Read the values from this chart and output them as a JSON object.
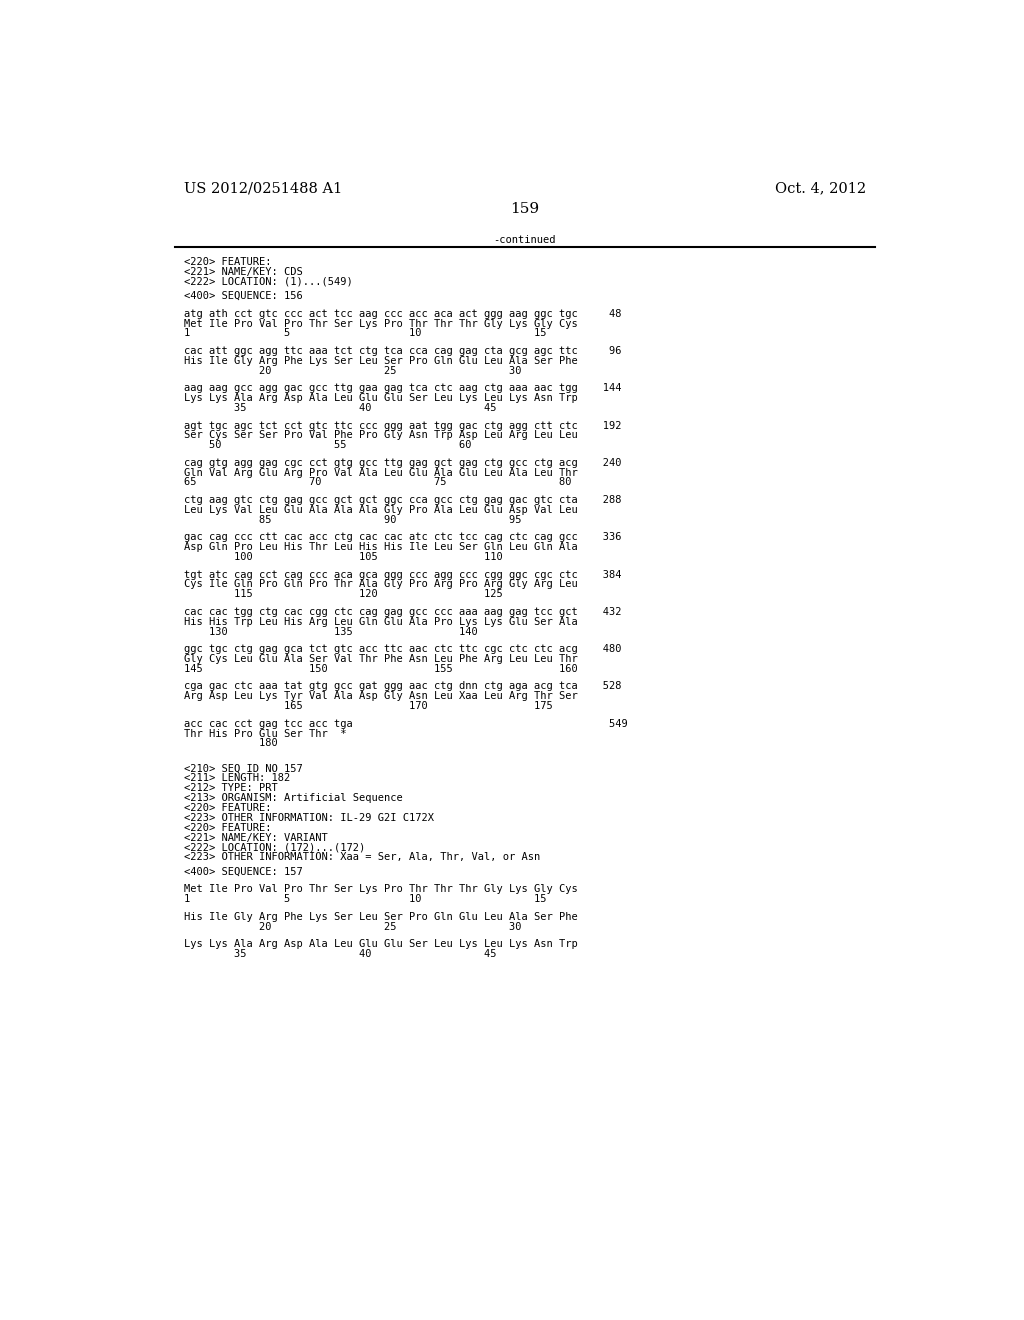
{
  "header_left": "US 2012/0251488 A1",
  "header_right": "Oct. 4, 2012",
  "page_number": "159",
  "continued_text": "-continued",
  "background_color": "#ffffff",
  "text_color": "#000000",
  "font_size_header": 10.5,
  "font_size_body": 8.5,
  "font_size_page": 11,
  "body_fontsize": 7.5,
  "lines": [
    {
      "text": "<220> FEATURE:",
      "type": "mono"
    },
    {
      "text": "<221> NAME/KEY: CDS",
      "type": "mono"
    },
    {
      "text": "<222> LOCATION: (1)...(549)",
      "type": "mono"
    },
    {
      "text": "",
      "type": "blank_small"
    },
    {
      "text": "<400> SEQUENCE: 156",
      "type": "mono"
    },
    {
      "text": "",
      "type": "blank_large"
    },
    {
      "text": "atg ath cct gtc ccc act tcc aag ccc acc aca act ggg aag ggc tgc     48",
      "type": "mono"
    },
    {
      "text": "Met Ile Pro Val Pro Thr Ser Lys Pro Thr Thr Thr Gly Lys Gly Cys",
      "type": "mono"
    },
    {
      "text": "1               5                   10                  15",
      "type": "mono"
    },
    {
      "text": "",
      "type": "blank_large"
    },
    {
      "text": "cac att ggc agg ttc aaa tct ctg tca cca cag gag cta gcg agc ttc     96",
      "type": "mono"
    },
    {
      "text": "His Ile Gly Arg Phe Lys Ser Leu Ser Pro Gln Glu Leu Ala Ser Phe",
      "type": "mono"
    },
    {
      "text": "            20                  25                  30",
      "type": "mono"
    },
    {
      "text": "",
      "type": "blank_large"
    },
    {
      "text": "aag aag gcc agg gac gcc ttg gaa gag tca ctc aag ctg aaa aac tgg    144",
      "type": "mono"
    },
    {
      "text": "Lys Lys Ala Arg Asp Ala Leu Glu Glu Ser Leu Lys Leu Lys Asn Trp",
      "type": "mono"
    },
    {
      "text": "        35                  40                  45",
      "type": "mono"
    },
    {
      "text": "",
      "type": "blank_large"
    },
    {
      "text": "agt tgc agc tct cct gtc ttc ccc ggg aat tgg gac ctg agg ctt ctc    192",
      "type": "mono"
    },
    {
      "text": "Ser Cys Ser Ser Pro Val Phe Pro Gly Asn Trp Asp Leu Arg Leu Leu",
      "type": "mono"
    },
    {
      "text": "    50                  55                  60",
      "type": "mono"
    },
    {
      "text": "",
      "type": "blank_large"
    },
    {
      "text": "cag gtg agg gag cgc cct gtg gcc ttg gag gct gag ctg gcc ctg acg    240",
      "type": "mono"
    },
    {
      "text": "Gln Val Arg Glu Arg Pro Val Ala Leu Glu Ala Glu Leu Ala Leu Thr",
      "type": "mono"
    },
    {
      "text": "65                  70                  75                  80",
      "type": "mono"
    },
    {
      "text": "",
      "type": "blank_large"
    },
    {
      "text": "ctg aag gtc ctg gag gcc gct gct ggc cca gcc ctg gag gac gtc cta    288",
      "type": "mono"
    },
    {
      "text": "Leu Lys Val Leu Glu Ala Ala Ala Gly Pro Ala Leu Glu Asp Val Leu",
      "type": "mono"
    },
    {
      "text": "            85                  90                  95",
      "type": "mono"
    },
    {
      "text": "",
      "type": "blank_large"
    },
    {
      "text": "gac cag ccc ctt cac acc ctg cac cac atc ctc tcc cag ctc cag gcc    336",
      "type": "mono"
    },
    {
      "text": "Asp Gln Pro Leu His Thr Leu His His Ile Leu Ser Gln Leu Gln Ala",
      "type": "mono"
    },
    {
      "text": "        100                 105                 110",
      "type": "mono"
    },
    {
      "text": "",
      "type": "blank_large"
    },
    {
      "text": "tgt atc cag cct cag ccc aca gca ggg ccc agg ccc cgg ggc cgc ctc    384",
      "type": "mono"
    },
    {
      "text": "Cys Ile Gln Pro Gln Pro Thr Ala Gly Pro Arg Pro Arg Gly Arg Leu",
      "type": "mono"
    },
    {
      "text": "        115                 120                 125",
      "type": "mono"
    },
    {
      "text": "",
      "type": "blank_large"
    },
    {
      "text": "cac cac tgg ctg cac cgg ctc cag gag gcc ccc aaa aag gag tcc gct    432",
      "type": "mono"
    },
    {
      "text": "His His Trp Leu His Arg Leu Gln Glu Ala Pro Lys Lys Glu Ser Ala",
      "type": "mono"
    },
    {
      "text": "    130                 135                 140",
      "type": "mono"
    },
    {
      "text": "",
      "type": "blank_large"
    },
    {
      "text": "ggc tgc ctg gag gca tct gtc acc ttc aac ctc ttc cgc ctc ctc acg    480",
      "type": "mono"
    },
    {
      "text": "Gly Cys Leu Glu Ala Ser Val Thr Phe Asn Leu Phe Arg Leu Leu Thr",
      "type": "mono"
    },
    {
      "text": "145                 150                 155                 160",
      "type": "mono"
    },
    {
      "text": "",
      "type": "blank_large"
    },
    {
      "text": "cga gac ctc aaa tat gtg gcc gat ggg aac ctg dnn ctg aga acg tca    528",
      "type": "mono"
    },
    {
      "text": "Arg Asp Leu Lys Tyr Val Ala Asp Gly Asn Leu Xaa Leu Arg Thr Ser",
      "type": "mono"
    },
    {
      "text": "                165                 170                 175",
      "type": "mono"
    },
    {
      "text": "",
      "type": "blank_large"
    },
    {
      "text": "acc cac cct gag tcc acc tga                                         549",
      "type": "mono"
    },
    {
      "text": "Thr His Pro Glu Ser Thr  *",
      "type": "mono"
    },
    {
      "text": "            180",
      "type": "mono"
    },
    {
      "text": "",
      "type": "blank_large"
    },
    {
      "text": "",
      "type": "blank_large"
    },
    {
      "text": "<210> SEQ ID NO 157",
      "type": "mono"
    },
    {
      "text": "<211> LENGTH: 182",
      "type": "mono"
    },
    {
      "text": "<212> TYPE: PRT",
      "type": "mono"
    },
    {
      "text": "<213> ORGANISM: Artificial Sequence",
      "type": "mono"
    },
    {
      "text": "<220> FEATURE:",
      "type": "mono"
    },
    {
      "text": "<223> OTHER INFORMATION: IL-29 G2I C172X",
      "type": "mono"
    },
    {
      "text": "<220> FEATURE:",
      "type": "mono"
    },
    {
      "text": "<221> NAME/KEY: VARIANT",
      "type": "mono"
    },
    {
      "text": "<222> LOCATION: (172)...(172)",
      "type": "mono"
    },
    {
      "text": "<223> OTHER INFORMATION: Xaa = Ser, Ala, Thr, Val, or Asn",
      "type": "mono"
    },
    {
      "text": "",
      "type": "blank_small"
    },
    {
      "text": "<400> SEQUENCE: 157",
      "type": "mono"
    },
    {
      "text": "",
      "type": "blank_large"
    },
    {
      "text": "Met Ile Pro Val Pro Thr Ser Lys Pro Thr Thr Thr Gly Lys Gly Cys",
      "type": "mono"
    },
    {
      "text": "1               5                   10                  15",
      "type": "mono"
    },
    {
      "text": "",
      "type": "blank_large"
    },
    {
      "text": "His Ile Gly Arg Phe Lys Ser Leu Ser Pro Gln Glu Leu Ala Ser Phe",
      "type": "mono"
    },
    {
      "text": "            20                  25                  30",
      "type": "mono"
    },
    {
      "text": "",
      "type": "blank_large"
    },
    {
      "text": "Lys Lys Ala Arg Asp Ala Leu Glu Glu Ser Leu Lys Leu Lys Asn Trp",
      "type": "mono"
    },
    {
      "text": "        35                  40                  45",
      "type": "mono"
    }
  ]
}
